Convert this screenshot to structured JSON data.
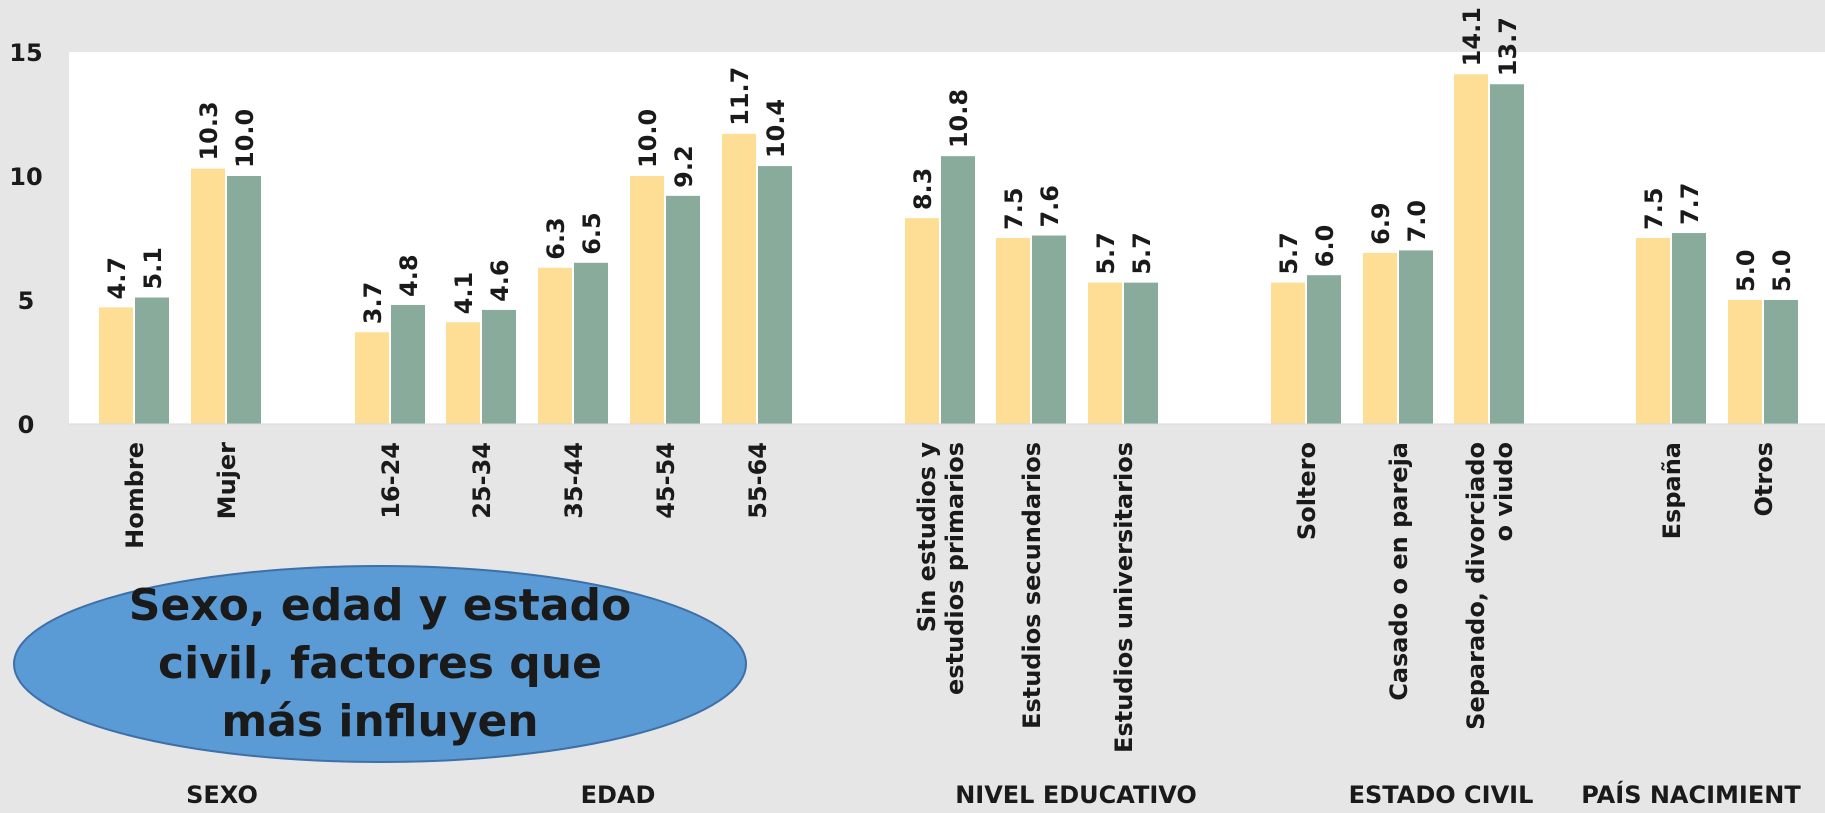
{
  "chart_data": {
    "type": "bar",
    "ylim": [
      0,
      15
    ],
    "yticks": [
      0,
      5,
      10,
      15
    ],
    "grid": false,
    "legend": "none",
    "colors": {
      "series1": "#fedd95",
      "series2": "#89ab9c",
      "background": "#e6e6e6",
      "plot_background": "#ffffff"
    },
    "groups": [
      {
        "label": "SEXO",
        "categories": [
          {
            "label": [
              "Hombre"
            ],
            "values": [
              4.7,
              5.1
            ]
          },
          {
            "label": [
              "Mujer"
            ],
            "values": [
              10.3,
              10.0
            ]
          }
        ]
      },
      {
        "label": "EDAD",
        "categories": [
          {
            "label": [
              "16-24"
            ],
            "values": [
              3.7,
              4.8
            ]
          },
          {
            "label": [
              "25-34"
            ],
            "values": [
              4.1,
              4.6
            ]
          },
          {
            "label": [
              "35-44"
            ],
            "values": [
              6.3,
              6.5
            ]
          },
          {
            "label": [
              "45-54"
            ],
            "values": [
              10.0,
              9.2
            ]
          },
          {
            "label": [
              "55-64"
            ],
            "values": [
              11.7,
              10.4
            ]
          }
        ]
      },
      {
        "label": "NIVEL EDUCATIVO",
        "categories": [
          {
            "label": [
              "Sin estudios y",
              "estudios primarios"
            ],
            "values": [
              8.3,
              10.8
            ]
          },
          {
            "label": [
              "Estudios secundarios"
            ],
            "values": [
              7.5,
              7.6
            ]
          },
          {
            "label": [
              "Estudios universitarios"
            ],
            "values": [
              5.7,
              5.7
            ]
          }
        ]
      },
      {
        "label": "ESTADO CIVIL",
        "categories": [
          {
            "label": [
              "Soltero"
            ],
            "values": [
              5.7,
              6.0
            ]
          },
          {
            "label": [
              "Casado o en pareja"
            ],
            "values": [
              6.9,
              7.0
            ]
          },
          {
            "label": [
              "Separado, divorciado",
              "o viudo"
            ],
            "values": [
              14.1,
              13.7
            ]
          }
        ]
      },
      {
        "label": "PAÍS NACIMIENT",
        "categories": [
          {
            "label": [
              "España"
            ],
            "values": [
              7.5,
              7.7
            ]
          },
          {
            "label": [
              "Otros"
            ],
            "values": [
              5.0,
              5.0
            ]
          }
        ]
      }
    ]
  },
  "callout": {
    "lines": [
      "Sexo, edad y estado",
      "civil, factores que",
      "más influyen"
    ],
    "fill": "#5b9bd5",
    "stroke": "#3d6fa8"
  }
}
